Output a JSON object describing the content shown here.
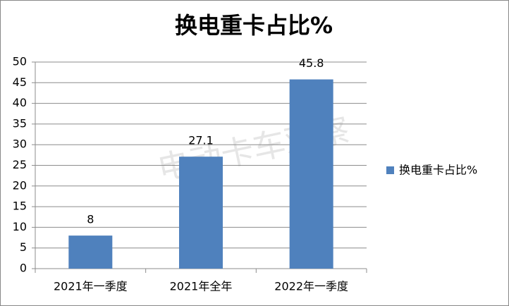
{
  "chart_data": {
    "type": "bar",
    "title": "换电重卡占比%",
    "categories": [
      "2021年一季度",
      "2021年全年",
      "2022年一季度"
    ],
    "series": [
      {
        "name": "换电重卡占比%",
        "color": "#4f81bd",
        "values": [
          8,
          27.1,
          45.8
        ]
      }
    ],
    "ylim": [
      0,
      50
    ],
    "yticks": [
      0,
      5,
      10,
      15,
      20,
      25,
      30,
      35,
      40,
      45,
      50
    ],
    "grid": true,
    "legend": "right",
    "watermark": "电动卡车观察"
  }
}
